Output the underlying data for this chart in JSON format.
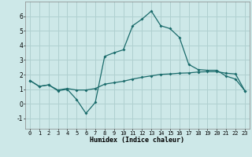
{
  "bg_color": "#cde8e8",
  "grid_color": "#b0d0d0",
  "line_color": "#1a6b6b",
  "xlabel": "Humidex (Indice chaleur)",
  "xlim": [
    -0.5,
    23.5
  ],
  "ylim": [
    -1.7,
    7.0
  ],
  "yticks": [
    -1,
    0,
    1,
    2,
    3,
    4,
    5,
    6
  ],
  "xticks": [
    0,
    1,
    2,
    3,
    4,
    5,
    6,
    7,
    8,
    9,
    10,
    11,
    12,
    13,
    14,
    15,
    16,
    17,
    18,
    19,
    20,
    21,
    22,
    23
  ],
  "line1_x": [
    0,
    1,
    2,
    3,
    4,
    5,
    6,
    7,
    8,
    9,
    10,
    11,
    12,
    13,
    14,
    15,
    16,
    17,
    18,
    19,
    20,
    21,
    22,
    23
  ],
  "line1_y": [
    1.6,
    1.2,
    1.3,
    0.9,
    1.0,
    0.3,
    -0.65,
    0.1,
    3.25,
    3.5,
    3.7,
    5.35,
    5.8,
    6.35,
    5.35,
    5.15,
    4.55,
    2.7,
    2.35,
    2.3,
    2.3,
    1.9,
    1.7,
    0.9
  ],
  "line2_x": [
    0,
    1,
    2,
    3,
    4,
    5,
    6,
    7,
    8,
    9,
    10,
    11,
    12,
    13,
    14,
    15,
    16,
    17,
    18,
    19,
    20,
    21,
    22,
    23
  ],
  "line2_y": [
    1.6,
    1.2,
    1.3,
    0.95,
    1.05,
    0.95,
    0.95,
    1.05,
    1.35,
    1.45,
    1.55,
    1.7,
    1.82,
    1.92,
    2.02,
    2.05,
    2.1,
    2.12,
    2.18,
    2.2,
    2.2,
    2.1,
    2.05,
    0.9
  ]
}
